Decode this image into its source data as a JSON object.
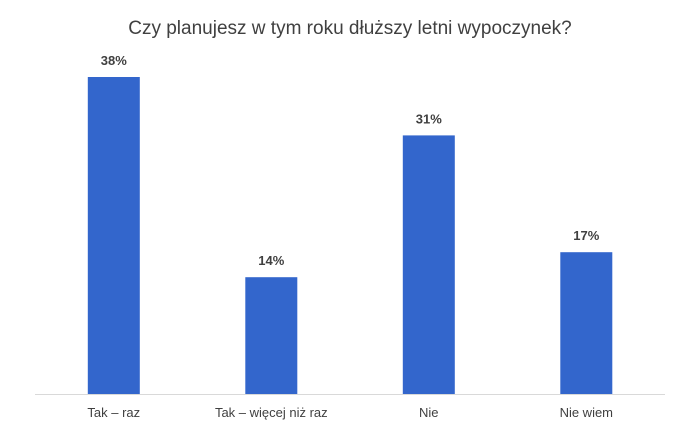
{
  "chart_data": {
    "type": "bar",
    "title": "Czy planujesz  w tym roku dłuższy letni wypoczynek?",
    "categories": [
      "Tak – raz",
      "Tak – więcej niż raz",
      "Nie",
      "Nie wiem"
    ],
    "values": [
      38,
      14,
      31,
      17
    ],
    "value_labels": [
      "38%",
      "14%",
      "31%",
      "17%"
    ],
    "unit": "%",
    "xlabel": "",
    "ylabel": "",
    "ylim": [
      0,
      38
    ],
    "grid": false,
    "legend": "none",
    "bar_color": "#3366CC",
    "axis_color": "#D9D9D9",
    "text_color": "#404040"
  }
}
